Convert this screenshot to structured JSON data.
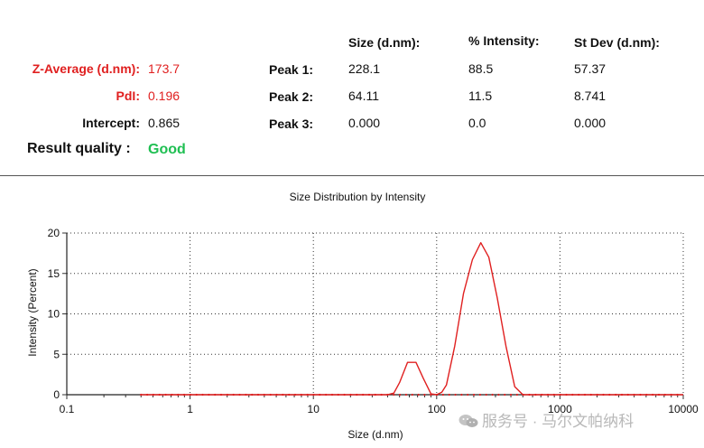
{
  "summary": {
    "z_average_label": "Z-Average (d.nm):",
    "z_average_value": "173.7",
    "pdi_label": "PdI:",
    "pdi_value": "0.196",
    "intercept_label": "Intercept:",
    "intercept_value": "0.865",
    "quality_label": "Result quality :",
    "quality_value": "Good"
  },
  "peaks": {
    "headers": [
      "Size (d.nm):",
      "% Intensity:",
      "St Dev (d.nm):"
    ],
    "rows": [
      {
        "label": "Peak 1:",
        "size": "228.1",
        "intensity": "88.5",
        "stdev": "57.37"
      },
      {
        "label": "Peak 2:",
        "size": "64.11",
        "intensity": "11.5",
        "stdev": "8.741"
      },
      {
        "label": "Peak 3:",
        "size": "0.000",
        "intensity": "0.0",
        "stdev": "0.000"
      }
    ]
  },
  "watermark": "服务号 · 马尔文帕纳科",
  "colors": {
    "red": "#e02020",
    "green": "#1fbf52",
    "line": "#e02020"
  },
  "chart_data": {
    "type": "line",
    "title": "Size Distribution by Intensity",
    "xlabel": "Size (d.nm)",
    "ylabel": "Intensity (Percent)",
    "xscale": "log",
    "xlim": [
      0.1,
      10000
    ],
    "ylim": [
      0,
      20
    ],
    "xticks": [
      0.1,
      1,
      10,
      100,
      1000,
      10000
    ],
    "xtick_labels": [
      "0.1",
      "1",
      "10",
      "100",
      "1000",
      "10000"
    ],
    "yticks": [
      0,
      5,
      10,
      15,
      20
    ],
    "ytick_labels": [
      "0",
      "5",
      "10",
      "15",
      "20"
    ],
    "grid": "dotted",
    "series": [
      {
        "color": "#e02020",
        "x": [
          0.4,
          5,
          40,
          45,
          50,
          58,
          68,
          78,
          90,
          100,
          110,
          120,
          140,
          165,
          195,
          228,
          265,
          310,
          365,
          430,
          500,
          700,
          1000,
          2000,
          5000,
          10000
        ],
        "y": [
          0,
          0,
          0,
          0.2,
          1.5,
          4.0,
          4.0,
          2.0,
          0.1,
          0,
          0.3,
          1.2,
          6.0,
          12.5,
          16.7,
          18.8,
          17.0,
          12.0,
          6.0,
          1.0,
          0,
          0,
          0,
          0,
          0,
          0
        ]
      }
    ]
  }
}
